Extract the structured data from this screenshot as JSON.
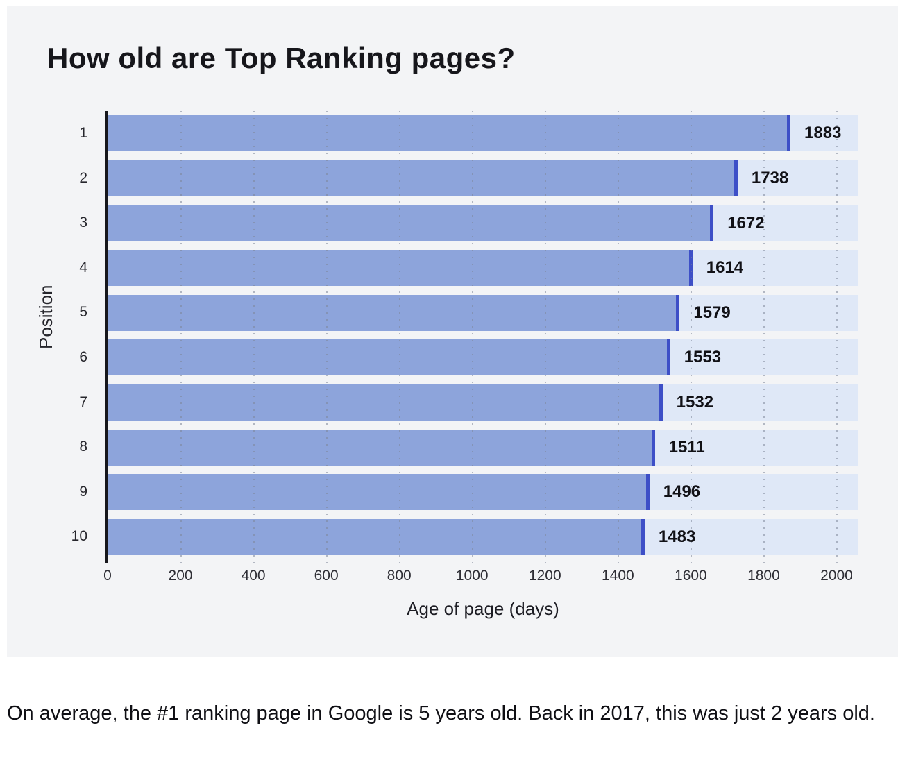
{
  "title": "How old are Top Ranking pages?",
  "caption": "On average, the #1 ranking page in Google is 5 years old. Back in 2017, this was just 2 years old.",
  "colors": {
    "page_background": "#ffffff",
    "card_background": "#f3f4f6",
    "bar_fill": "#8da4db",
    "bar_cap": "#3d4fc7",
    "bar_track": "#dfe8f7",
    "axis_line": "#17171c",
    "text": "#111116"
  },
  "chart_data": {
    "type": "bar",
    "orientation": "horizontal",
    "title": "How old are Top Ranking pages?",
    "categories": [
      "1",
      "2",
      "3",
      "4",
      "5",
      "6",
      "7",
      "8",
      "9",
      "10"
    ],
    "values": [
      1883,
      1738,
      1672,
      1614,
      1579,
      1553,
      1532,
      1511,
      1496,
      1483
    ],
    "xlabel": "Age of page (days)",
    "ylabel": "Position",
    "xlim": [
      0,
      2060
    ],
    "xticks": [
      0,
      200,
      400,
      600,
      800,
      1000,
      1200,
      1400,
      1600,
      1800,
      2000
    ],
    "grid": "vertical-dotted",
    "legend": "none"
  }
}
